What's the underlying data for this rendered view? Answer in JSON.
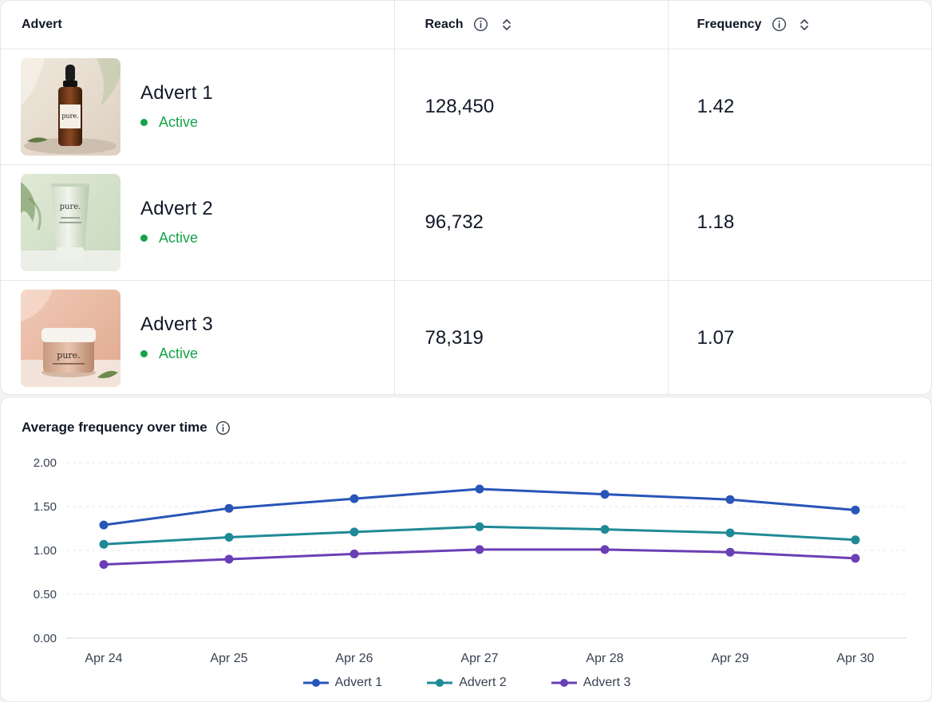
{
  "table": {
    "columns": {
      "advert": "Advert",
      "reach": "Reach",
      "frequency": "Frequency"
    },
    "rows": [
      {
        "name": "Advert 1",
        "status": "Active",
        "reach": "128,450",
        "frequency": "1.42",
        "thumb_label": "pure.",
        "product": "dropper-bottle"
      },
      {
        "name": "Advert 2",
        "status": "Active",
        "reach": "96,732",
        "frequency": "1.18",
        "thumb_label": "pure.",
        "product": "tube"
      },
      {
        "name": "Advert 3",
        "status": "Active",
        "reach": "78,319",
        "frequency": "1.07",
        "thumb_label": "pure.",
        "product": "jar"
      }
    ]
  },
  "icons": {
    "info": "info-icon",
    "sort": "sort-icon"
  },
  "colors": {
    "status_active": "#16a34a",
    "advert_1": "#2855b8",
    "advert_2": "#1f8a96",
    "advert_3": "#6a3fb5"
  },
  "chart": {
    "title": "Average frequency over time"
  },
  "chart_data": {
    "type": "line",
    "x": [
      "Apr 24",
      "Apr 25",
      "Apr 26",
      "Apr 27",
      "Apr 28",
      "Apr 29",
      "Apr 30"
    ],
    "series": [
      {
        "name": "Advert 1",
        "color": "#2855b8",
        "values": [
          1.29,
          1.48,
          1.59,
          1.7,
          1.64,
          1.58,
          1.46
        ]
      },
      {
        "name": "Advert 2",
        "color": "#1f8a96",
        "values": [
          1.07,
          1.15,
          1.21,
          1.27,
          1.24,
          1.2,
          1.12
        ]
      },
      {
        "name": "Advert 3",
        "color": "#6a3fb5",
        "values": [
          0.84,
          0.9,
          0.96,
          1.01,
          1.01,
          0.98,
          0.91
        ]
      }
    ],
    "yticks": [
      "0.00",
      "0.50",
      "1.00",
      "1.50",
      "2.00"
    ],
    "ylim": [
      0,
      2
    ],
    "grid": true,
    "legend": "bottom-center"
  }
}
